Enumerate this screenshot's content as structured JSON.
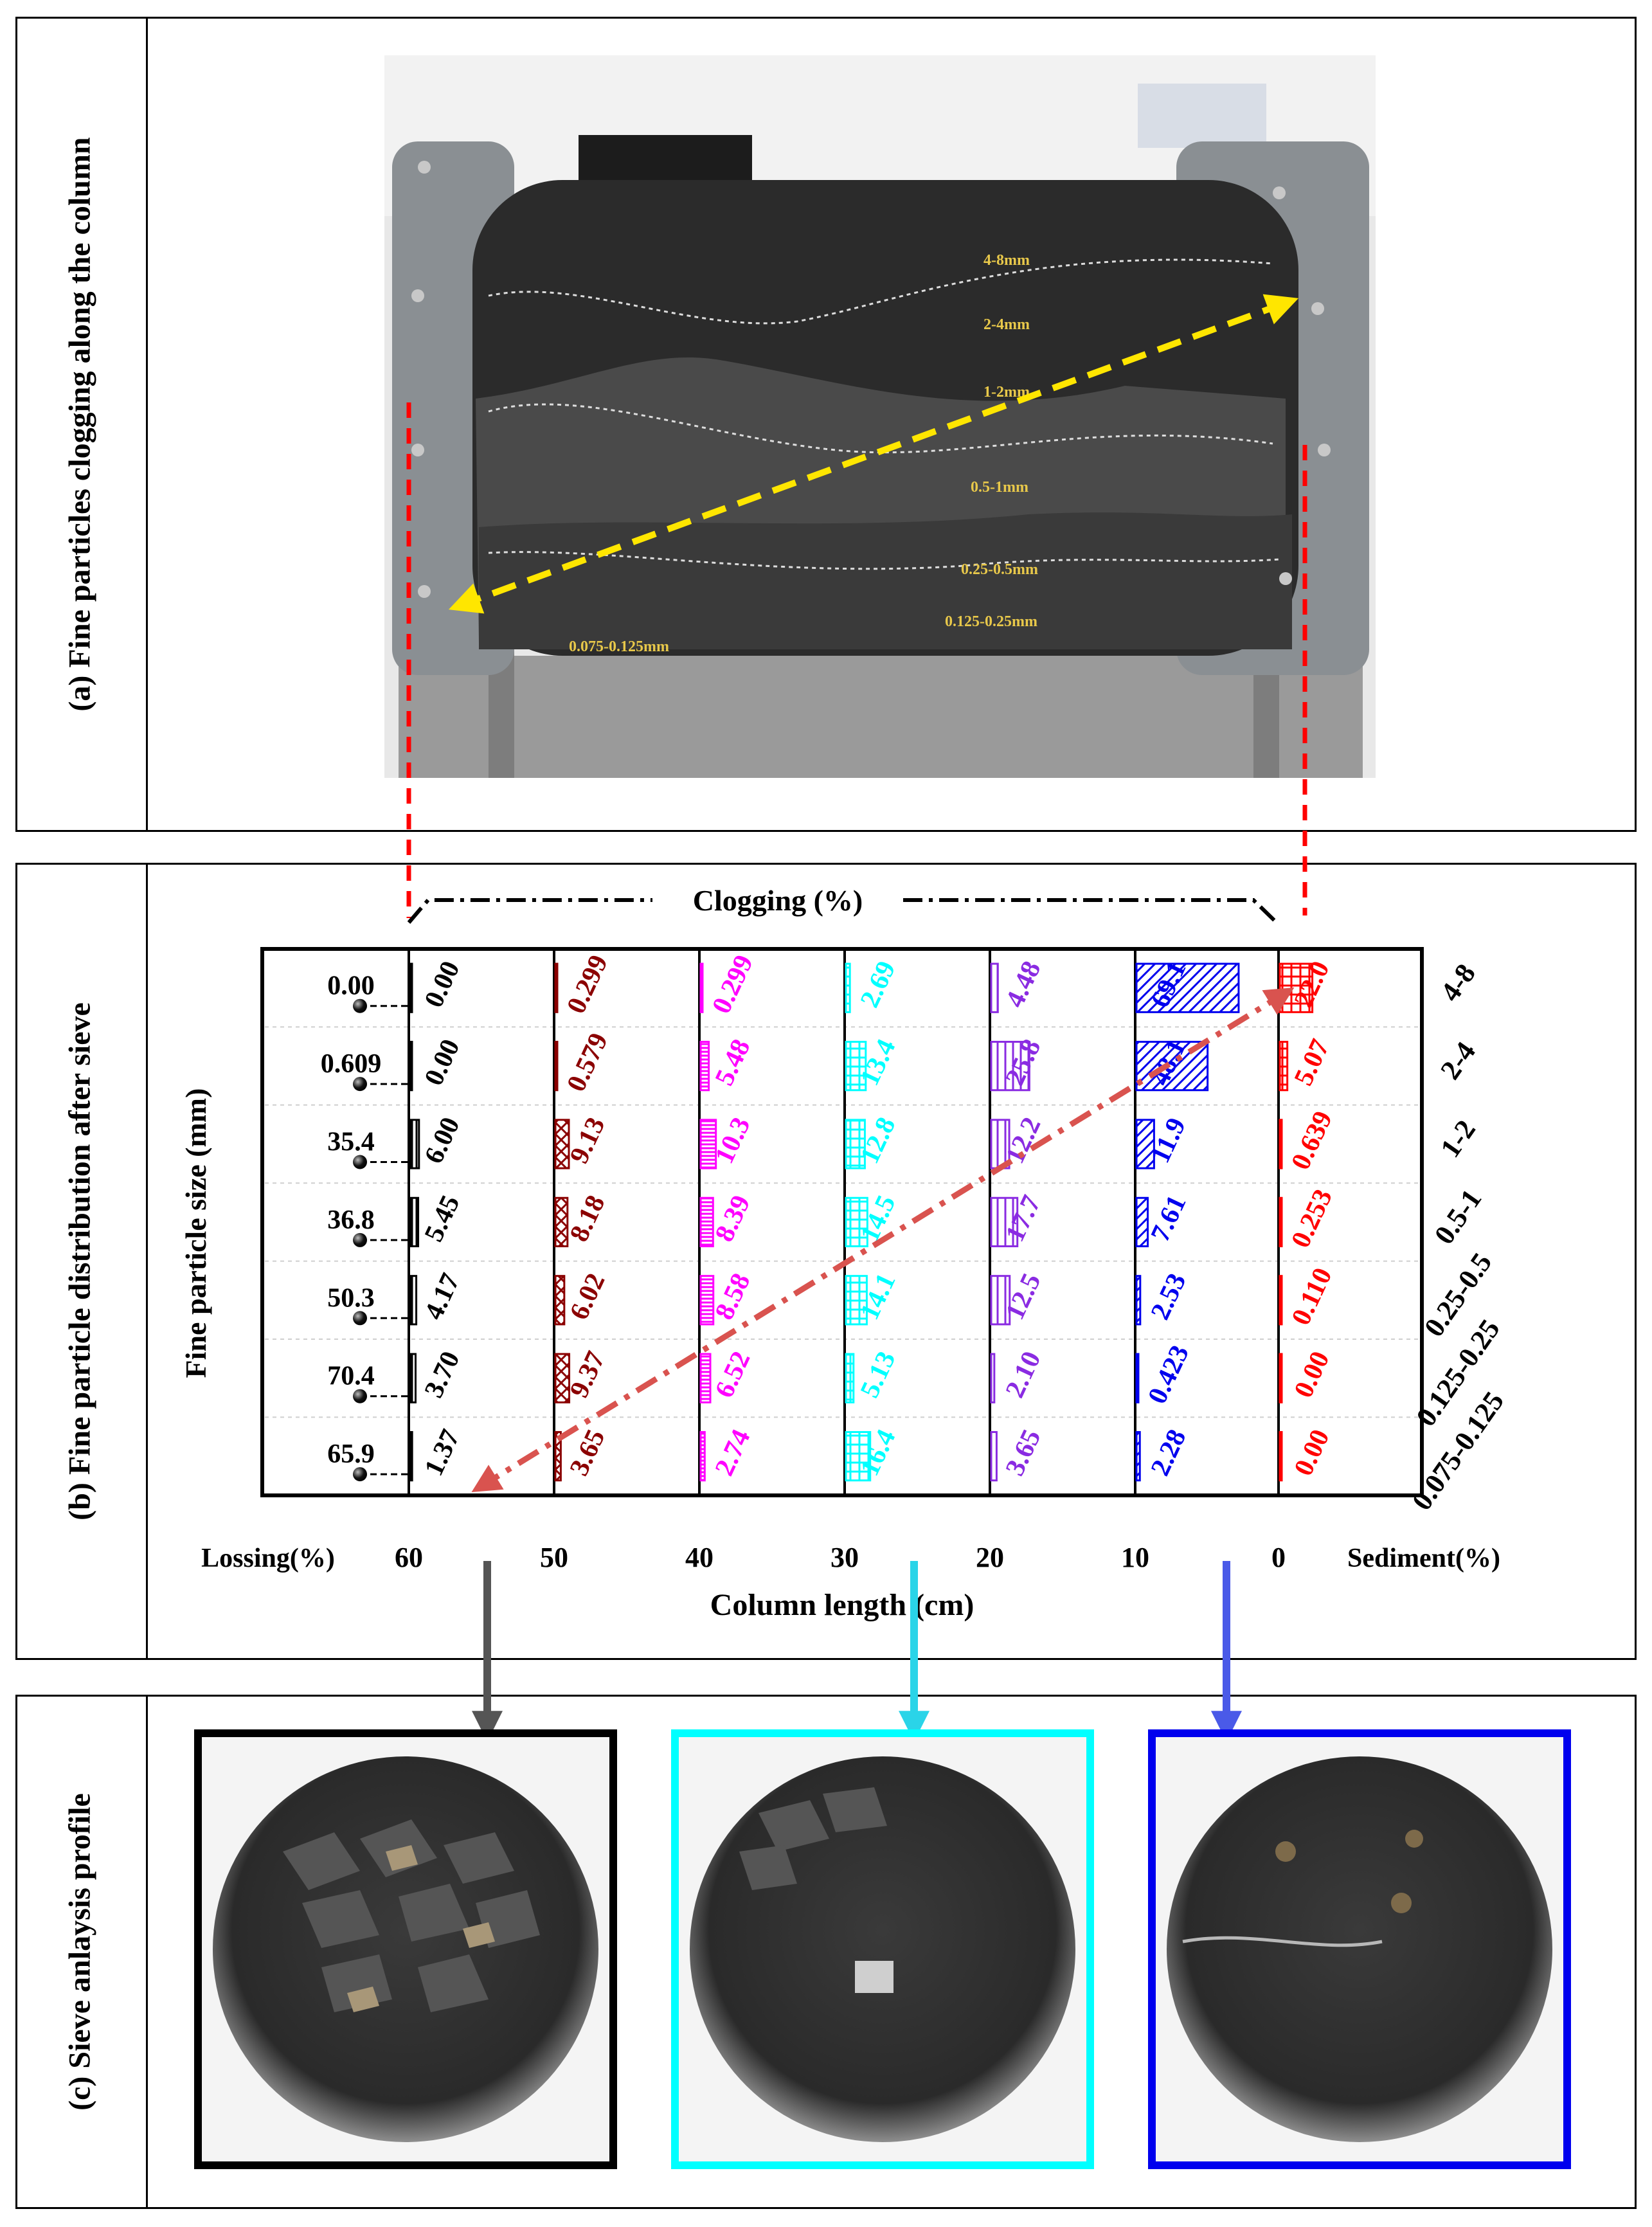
{
  "panel_a": {
    "label": "(a) Fine particles clogging along the column",
    "photo_labels": [
      "4-8mm",
      "2-4mm",
      "1-2mm",
      "0.5-1mm",
      "0.25-0.5mm",
      "0.125-0.25mm",
      "0.075-0.125mm"
    ]
  },
  "panel_b": {
    "label": "(b) Fine particle distribution after sieve",
    "clogging_title": "Clogging (%)",
    "y_label": "Fine particle size (mm)",
    "x_label": "Column length (cm)",
    "lossing_label": "Lossing(%)",
    "sediment_label": "Sediment(%)"
  },
  "panel_c": {
    "label": "(c) Sieve anlaysis profile"
  },
  "colors": {
    "c60": "#000000",
    "c50": "#8b0000",
    "c40": "#ff00ff",
    "c30": "#00ffff",
    "c20": "#8a2be2",
    "c10": "#0000ee",
    "c0": "#ff0000",
    "yellow_arrow": "#ffe600",
    "red_arrow": "#d9534f"
  },
  "chart_data": {
    "type": "bar",
    "title": "Clogging (%)",
    "xlabel": "Column length (cm)",
    "ylabel": "Fine particle size (mm)",
    "x_ticks": [
      "60",
      "50",
      "40",
      "30",
      "20",
      "10",
      "0"
    ],
    "categories": [
      "4-8",
      "2-4",
      "1-2",
      "0.5-1",
      "0.25-0.5",
      "0.125-0.25",
      "0.075-0.125"
    ],
    "lossing": {
      "label": "Lossing(%)",
      "values": [
        "0.00",
        "0.609",
        "35.4",
        "36.8",
        "50.3",
        "70.4",
        "65.9"
      ]
    },
    "series": [
      {
        "position": "60",
        "values": [
          "0.00",
          "0.00",
          "6.00",
          "5.45",
          "4.17",
          "3.70",
          "1.37"
        ]
      },
      {
        "position": "50",
        "values": [
          "0.299",
          "0.579",
          "9.13",
          "8.18",
          "6.02",
          "9.37",
          "3.65"
        ]
      },
      {
        "position": "40",
        "values": [
          "0.299",
          "5.48",
          "10.3",
          "8.39",
          "8.58",
          "6.52",
          "2.74"
        ]
      },
      {
        "position": "30",
        "values": [
          "2.69",
          "13.4",
          "12.8",
          "14.5",
          "14.1",
          "5.13",
          "16.4"
        ]
      },
      {
        "position": "20",
        "values": [
          "4.48",
          "25.8",
          "12.2",
          "17.7",
          "12.5",
          "2.10",
          "3.65"
        ]
      },
      {
        "position": "10",
        "values": [
          "69.1",
          "48.1",
          "11.9",
          "7.61",
          "2.53",
          "0.423",
          "2.28"
        ]
      },
      {
        "position": "0",
        "label": "Sediment(%)",
        "values": [
          "22.0",
          "5.07",
          "0.639",
          "0.253",
          "0.110",
          "0.00",
          "0.00"
        ]
      }
    ]
  }
}
